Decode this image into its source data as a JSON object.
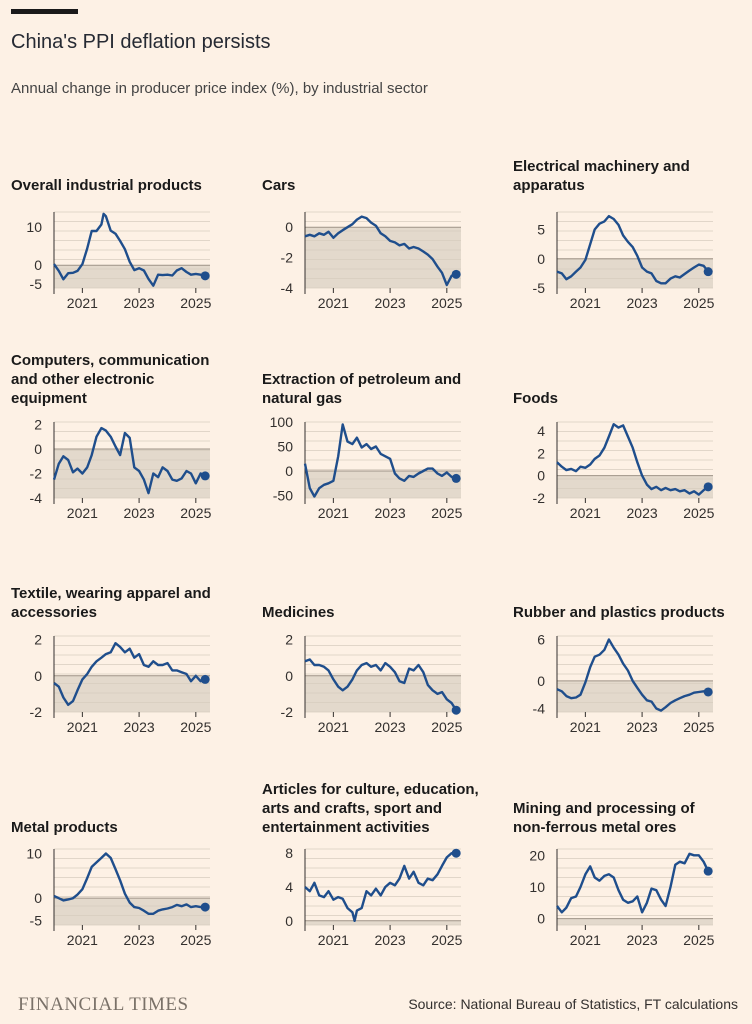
{
  "header": {
    "title": "China's PPI deflation persists",
    "subtitle": "Annual change in producer price index (%), by industrial sector"
  },
  "footer": {
    "brand": "FINANCIAL TIMES",
    "source": "Source: National Bureau of Statistics, FT calculations"
  },
  "colors": {
    "line": "#1f4e8c",
    "shade": "#e3d9cc",
    "grid": "#d7ccbf",
    "background": "#fdf1e5"
  },
  "chart_data": [
    {
      "type": "line",
      "title_lines": [
        "Overall industrial products"
      ],
      "xlabel": "",
      "ylabel": "%",
      "ylim": [
        -6,
        14
      ],
      "yticks": [
        10,
        0,
        -5
      ],
      "xlim": [
        2020,
        2025.5
      ],
      "xticks": [
        2021,
        2023,
        2025
      ],
      "x": [
        2020.0,
        2020.17,
        2020.33,
        2020.5,
        2020.67,
        2020.83,
        2021.0,
        2021.17,
        2021.33,
        2021.5,
        2021.67,
        2021.75,
        2021.83,
        2022.0,
        2022.17,
        2022.33,
        2022.5,
        2022.67,
        2022.83,
        2023.0,
        2023.17,
        2023.33,
        2023.5,
        2023.67,
        2023.83,
        2024.0,
        2024.17,
        2024.33,
        2024.5,
        2024.67,
        2024.83,
        2025.0,
        2025.17,
        2025.33
      ],
      "y": [
        0.3,
        -1.5,
        -3.7,
        -2.1,
        -2.0,
        -1.5,
        0.3,
        4.4,
        9.0,
        9.0,
        10.7,
        13.5,
        12.9,
        9.1,
        8.3,
        6.4,
        4.2,
        0.9,
        -1.3,
        -0.8,
        -1.4,
        -3.6,
        -5.4,
        -2.5,
        -2.6,
        -2.5,
        -2.7,
        -1.4,
        -0.8,
        -1.8,
        -2.5,
        -2.3,
        -2.5,
        -2.8
      ]
    },
    {
      "type": "line",
      "title_lines": [
        "Cars"
      ],
      "xlabel": "",
      "ylabel": "%",
      "ylim": [
        -4,
        1
      ],
      "yticks": [
        0,
        -2,
        -4
      ],
      "xlim": [
        2020,
        2025.5
      ],
      "xticks": [
        2021,
        2023,
        2025
      ],
      "x": [
        2020.0,
        2020.17,
        2020.33,
        2020.5,
        2020.67,
        2020.83,
        2021.0,
        2021.17,
        2021.33,
        2021.5,
        2021.67,
        2021.83,
        2022.0,
        2022.17,
        2022.33,
        2022.5,
        2022.67,
        2022.83,
        2023.0,
        2023.17,
        2023.33,
        2023.5,
        2023.67,
        2023.83,
        2024.0,
        2024.17,
        2024.33,
        2024.5,
        2024.67,
        2024.83,
        2025.0,
        2025.17,
        2025.33
      ],
      "y": [
        -0.6,
        -0.5,
        -0.6,
        -0.4,
        -0.5,
        -0.3,
        -0.7,
        -0.4,
        -0.2,
        0.0,
        0.2,
        0.5,
        0.7,
        0.6,
        0.3,
        0.1,
        -0.4,
        -0.6,
        -0.9,
        -1.0,
        -1.2,
        -1.1,
        -1.4,
        -1.3,
        -1.4,
        -1.6,
        -1.8,
        -2.1,
        -2.6,
        -3.0,
        -3.8,
        -3.2,
        -3.1
      ]
    },
    {
      "type": "line",
      "title_lines": [
        "Electrical machinery and",
        "apparatus"
      ],
      "xlabel": "",
      "ylabel": "%",
      "ylim": [
        -5,
        8
      ],
      "yticks": [
        5,
        0,
        -5
      ],
      "xlim": [
        2020,
        2025.5
      ],
      "xticks": [
        2021,
        2023,
        2025
      ],
      "x": [
        2020.0,
        2020.17,
        2020.33,
        2020.5,
        2020.67,
        2020.83,
        2021.0,
        2021.17,
        2021.33,
        2021.5,
        2021.67,
        2021.83,
        2022.0,
        2022.17,
        2022.33,
        2022.5,
        2022.67,
        2022.83,
        2023.0,
        2023.17,
        2023.33,
        2023.5,
        2023.67,
        2023.83,
        2024.0,
        2024.17,
        2024.33,
        2024.5,
        2024.67,
        2024.83,
        2025.0,
        2025.17,
        2025.33
      ],
      "y": [
        -2.2,
        -2.5,
        -3.5,
        -3.0,
        -2.2,
        -1.5,
        -0.2,
        2.5,
        5.0,
        6.0,
        6.4,
        7.3,
        6.8,
        5.8,
        4.0,
        2.9,
        2.0,
        0.5,
        -1.5,
        -2.2,
        -2.5,
        -3.8,
        -4.2,
        -4.2,
        -3.4,
        -3.0,
        -3.2,
        -2.6,
        -2.0,
        -1.5,
        -1.0,
        -1.2,
        -2.2
      ]
    },
    {
      "type": "line",
      "title_lines": [
        "Computers, communication",
        "and other electronic",
        "equipment"
      ],
      "xlabel": "",
      "ylabel": "%",
      "ylim": [
        -4,
        2.2
      ],
      "yticks": [
        2,
        0,
        -2,
        -4
      ],
      "xlim": [
        2020,
        2025.5
      ],
      "xticks": [
        2021,
        2023,
        2025
      ],
      "x": [
        2020.0,
        2020.17,
        2020.33,
        2020.5,
        2020.67,
        2020.83,
        2021.0,
        2021.17,
        2021.33,
        2021.5,
        2021.67,
        2021.83,
        2022.0,
        2022.17,
        2022.33,
        2022.5,
        2022.67,
        2022.83,
        2023.0,
        2023.17,
        2023.33,
        2023.5,
        2023.67,
        2023.83,
        2024.0,
        2024.17,
        2024.33,
        2024.5,
        2024.67,
        2024.83,
        2025.0,
        2025.17,
        2025.33
      ],
      "y": [
        -2.5,
        -1.2,
        -0.6,
        -0.9,
        -1.9,
        -1.6,
        -2.0,
        -1.5,
        -0.5,
        1.0,
        1.7,
        1.5,
        1.0,
        0.2,
        -0.5,
        1.3,
        0.9,
        -1.5,
        -1.8,
        -2.5,
        -3.6,
        -2.0,
        -2.3,
        -1.5,
        -1.8,
        -2.5,
        -2.6,
        -2.4,
        -1.8,
        -2.0,
        -2.8,
        -2.0,
        -2.2
      ]
    },
    {
      "type": "line",
      "title_lines": [
        "Extraction of petroleum and",
        "natural gas"
      ],
      "xlabel": "",
      "ylabel": "%",
      "ylim": [
        -55,
        100
      ],
      "yticks": [
        100,
        50,
        0,
        -50
      ],
      "xlim": [
        2020,
        2025.5
      ],
      "xticks": [
        2021,
        2023,
        2025
      ],
      "x": [
        2020.0,
        2020.17,
        2020.33,
        2020.5,
        2020.67,
        2020.83,
        2021.0,
        2021.17,
        2021.33,
        2021.5,
        2021.67,
        2021.83,
        2022.0,
        2022.17,
        2022.33,
        2022.5,
        2022.67,
        2022.83,
        2023.0,
        2023.17,
        2023.33,
        2023.5,
        2023.67,
        2023.83,
        2024.0,
        2024.17,
        2024.33,
        2024.5,
        2024.67,
        2024.83,
        2025.0,
        2025.17,
        2025.33
      ],
      "y": [
        15,
        -35,
        -52,
        -35,
        -28,
        -25,
        -20,
        30,
        95,
        60,
        55,
        68,
        48,
        55,
        45,
        50,
        35,
        30,
        25,
        -5,
        -15,
        -20,
        -10,
        -12,
        -5,
        0,
        5,
        5,
        -5,
        -10,
        -3,
        -12,
        -15
      ]
    },
    {
      "type": "line",
      "title_lines": [
        "Foods"
      ],
      "xlabel": "",
      "ylabel": "%",
      "ylim": [
        -2,
        4.8
      ],
      "yticks": [
        4,
        2,
        0,
        -2
      ],
      "xlim": [
        2020,
        2025.5
      ],
      "xticks": [
        2021,
        2023,
        2025
      ],
      "x": [
        2020.0,
        2020.17,
        2020.33,
        2020.5,
        2020.67,
        2020.83,
        2021.0,
        2021.17,
        2021.33,
        2021.5,
        2021.67,
        2021.83,
        2022.0,
        2022.17,
        2022.33,
        2022.5,
        2022.67,
        2022.83,
        2023.0,
        2023.17,
        2023.33,
        2023.5,
        2023.67,
        2023.83,
        2024.0,
        2024.17,
        2024.33,
        2024.5,
        2024.67,
        2024.83,
        2025.0,
        2025.17,
        2025.33
      ],
      "y": [
        1.2,
        0.8,
        0.5,
        0.6,
        0.4,
        0.8,
        0.7,
        1.0,
        1.5,
        1.8,
        2.5,
        3.5,
        4.6,
        4.3,
        4.5,
        3.5,
        2.5,
        1.2,
        0.0,
        -0.8,
        -1.2,
        -1.0,
        -1.3,
        -1.1,
        -1.3,
        -1.2,
        -1.4,
        -1.3,
        -1.6,
        -1.4,
        -1.7,
        -1.3,
        -1.0
      ]
    },
    {
      "type": "line",
      "title_lines": [
        "Textile, wearing apparel and",
        "accessories"
      ],
      "xlabel": "",
      "ylabel": "%",
      "ylim": [
        -2,
        2.2
      ],
      "yticks": [
        2,
        0,
        -2
      ],
      "xlim": [
        2020,
        2025.5
      ],
      "xticks": [
        2021,
        2023,
        2025
      ],
      "x": [
        2020.0,
        2020.17,
        2020.33,
        2020.5,
        2020.67,
        2020.83,
        2021.0,
        2021.17,
        2021.33,
        2021.5,
        2021.67,
        2021.83,
        2022.0,
        2022.17,
        2022.33,
        2022.5,
        2022.67,
        2022.83,
        2023.0,
        2023.17,
        2023.33,
        2023.5,
        2023.67,
        2023.83,
        2024.0,
        2024.17,
        2024.33,
        2024.5,
        2024.67,
        2024.83,
        2025.0,
        2025.17,
        2025.33
      ],
      "y": [
        -0.4,
        -0.6,
        -1.2,
        -1.6,
        -1.4,
        -0.8,
        -0.2,
        0.1,
        0.5,
        0.8,
        1.0,
        1.2,
        1.3,
        1.8,
        1.6,
        1.3,
        1.5,
        1.0,
        1.2,
        0.6,
        0.5,
        0.8,
        0.6,
        0.6,
        0.7,
        0.3,
        0.3,
        0.2,
        0.1,
        -0.3,
        0.0,
        -0.3,
        -0.2
      ]
    },
    {
      "type": "line",
      "title_lines": [
        "Medicines"
      ],
      "xlabel": "",
      "ylabel": "%",
      "ylim": [
        -2,
        2.2
      ],
      "yticks": [
        2,
        0,
        -2
      ],
      "xlim": [
        2020,
        2025.5
      ],
      "xticks": [
        2021,
        2023,
        2025
      ],
      "x": [
        2020.0,
        2020.17,
        2020.33,
        2020.5,
        2020.67,
        2020.83,
        2021.0,
        2021.17,
        2021.33,
        2021.5,
        2021.67,
        2021.83,
        2022.0,
        2022.17,
        2022.33,
        2022.5,
        2022.67,
        2022.83,
        2023.0,
        2023.17,
        2023.33,
        2023.5,
        2023.67,
        2023.83,
        2024.0,
        2024.17,
        2024.33,
        2024.5,
        2024.67,
        2024.83,
        2025.0,
        2025.17,
        2025.33
      ],
      "y": [
        0.8,
        0.9,
        0.6,
        0.6,
        0.5,
        0.3,
        -0.2,
        -0.6,
        -0.8,
        -0.6,
        -0.2,
        0.3,
        0.6,
        0.7,
        0.5,
        0.6,
        0.3,
        0.7,
        0.5,
        0.2,
        -0.3,
        -0.4,
        0.4,
        0.3,
        0.6,
        0.2,
        -0.5,
        -0.8,
        -1.0,
        -0.9,
        -1.3,
        -1.5,
        -1.9
      ]
    },
    {
      "type": "line",
      "title_lines": [
        "Rubber and plastics products"
      ],
      "xlabel": "",
      "ylabel": "%",
      "ylim": [
        -4.5,
        6.5
      ],
      "yticks": [
        6,
        0,
        -4
      ],
      "xlim": [
        2020,
        2025.5
      ],
      "xticks": [
        2021,
        2023,
        2025
      ],
      "x": [
        2020.0,
        2020.17,
        2020.33,
        2020.5,
        2020.67,
        2020.83,
        2021.0,
        2021.17,
        2021.33,
        2021.5,
        2021.67,
        2021.83,
        2022.0,
        2022.17,
        2022.33,
        2022.5,
        2022.67,
        2022.83,
        2023.0,
        2023.17,
        2023.33,
        2023.5,
        2023.67,
        2023.83,
        2024.0,
        2024.17,
        2024.33,
        2024.5,
        2024.67,
        2024.83,
        2025.0,
        2025.17,
        2025.33
      ],
      "y": [
        -1.2,
        -1.5,
        -2.2,
        -2.5,
        -2.4,
        -2.0,
        -0.2,
        2.0,
        3.5,
        3.8,
        4.5,
        6.0,
        4.8,
        3.8,
        2.5,
        1.5,
        0.0,
        -1.0,
        -2.0,
        -2.8,
        -3.0,
        -4.0,
        -4.3,
        -3.8,
        -3.2,
        -2.8,
        -2.5,
        -2.2,
        -2.0,
        -1.7,
        -1.6,
        -1.5,
        -1.6
      ]
    },
    {
      "type": "line",
      "title_lines": [
        "Metal products"
      ],
      "xlabel": "",
      "ylabel": "%",
      "ylim": [
        -6,
        11
      ],
      "yticks": [
        10,
        0,
        -5
      ],
      "xlim": [
        2020,
        2025.5
      ],
      "xticks": [
        2021,
        2023,
        2025
      ],
      "x": [
        2020.0,
        2020.17,
        2020.33,
        2020.5,
        2020.67,
        2020.83,
        2021.0,
        2021.17,
        2021.33,
        2021.5,
        2021.67,
        2021.83,
        2022.0,
        2022.17,
        2022.33,
        2022.5,
        2022.67,
        2022.83,
        2023.0,
        2023.17,
        2023.33,
        2023.5,
        2023.67,
        2023.83,
        2024.0,
        2024.17,
        2024.33,
        2024.5,
        2024.67,
        2024.83,
        2025.0,
        2025.17,
        2025.33
      ],
      "y": [
        0.5,
        0.0,
        -0.5,
        -0.3,
        0.0,
        0.8,
        2.0,
        4.5,
        7.0,
        8.0,
        9.0,
        10.0,
        9.0,
        6.5,
        4.0,
        1.0,
        -1.0,
        -2.0,
        -2.2,
        -2.8,
        -3.5,
        -3.5,
        -2.8,
        -2.5,
        -2.3,
        -2.0,
        -1.5,
        -1.8,
        -1.4,
        -2.0,
        -1.8,
        -2.0,
        -2.0
      ]
    },
    {
      "type": "line",
      "title_lines": [
        "Articles for culture, education,",
        "arts and crafts, sport and",
        "entertainment activities"
      ],
      "xlabel": "",
      "ylabel": "%",
      "ylim": [
        -0.5,
        8.5
      ],
      "yticks": [
        8,
        4,
        0
      ],
      "xlim": [
        2020,
        2025.5
      ],
      "xticks": [
        2021,
        2023,
        2025
      ],
      "x": [
        2020.0,
        2020.17,
        2020.33,
        2020.5,
        2020.67,
        2020.83,
        2021.0,
        2021.17,
        2021.33,
        2021.5,
        2021.67,
        2021.75,
        2021.83,
        2022.0,
        2022.17,
        2022.33,
        2022.5,
        2022.67,
        2022.83,
        2023.0,
        2023.17,
        2023.33,
        2023.5,
        2023.67,
        2023.83,
        2024.0,
        2024.17,
        2024.33,
        2024.5,
        2024.67,
        2024.83,
        2025.0,
        2025.17,
        2025.33
      ],
      "y": [
        4.0,
        3.5,
        4.5,
        3.0,
        2.8,
        3.5,
        2.5,
        2.8,
        2.6,
        1.5,
        1.0,
        0.0,
        1.2,
        1.5,
        3.5,
        3.0,
        3.8,
        3.0,
        4.0,
        4.5,
        4.2,
        5.0,
        6.5,
        5.0,
        5.8,
        4.5,
        4.2,
        5.0,
        4.8,
        5.5,
        6.5,
        7.5,
        8.0,
        8.0
      ]
    },
    {
      "type": "line",
      "title_lines": [
        "Mining and processing of",
        "non-ferrous metal ores"
      ],
      "xlabel": "",
      "ylabel": "%",
      "ylim": [
        -2,
        22
      ],
      "yticks": [
        20,
        10,
        0
      ],
      "xlim": [
        2020,
        2025.5
      ],
      "xticks": [
        2021,
        2023,
        2025
      ],
      "x": [
        2020.0,
        2020.17,
        2020.33,
        2020.5,
        2020.67,
        2020.83,
        2021.0,
        2021.17,
        2021.33,
        2021.5,
        2021.67,
        2021.83,
        2022.0,
        2022.17,
        2022.33,
        2022.5,
        2022.67,
        2022.83,
        2023.0,
        2023.17,
        2023.33,
        2023.5,
        2023.67,
        2023.83,
        2024.0,
        2024.17,
        2024.33,
        2024.5,
        2024.67,
        2024.83,
        2025.0,
        2025.17,
        2025.33
      ],
      "y": [
        4.0,
        2.0,
        3.5,
        6.5,
        7.0,
        10.0,
        14.0,
        16.5,
        13.0,
        12.0,
        13.5,
        14.0,
        13.0,
        9.0,
        6.0,
        5.0,
        5.5,
        7.0,
        2.0,
        5.0,
        9.5,
        9.0,
        6.0,
        4.0,
        10.0,
        17.0,
        18.0,
        17.5,
        20.5,
        20.0,
        20.0,
        18.0,
        15.0
      ]
    }
  ]
}
